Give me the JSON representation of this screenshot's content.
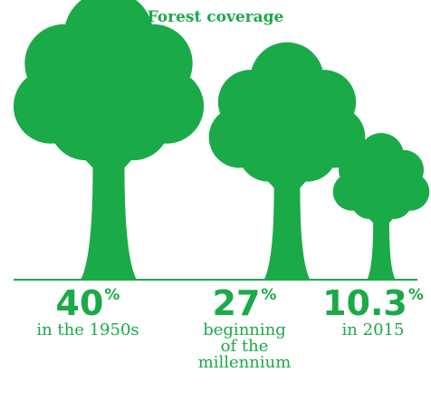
{
  "chart_data": {
    "type": "pictogram",
    "title": "Forest coverage",
    "unit_symbol": "%",
    "categories": [
      "in the 1950s",
      "beginning\nof the\nmillennium",
      "in 2015"
    ],
    "value_labels": [
      "40",
      "27",
      "10.3"
    ],
    "values": [
      40,
      27,
      10.3
    ]
  },
  "colors": {
    "tree": "#1aaa48",
    "text": "#1aaa48",
    "background": "#ffffff"
  },
  "icons": {
    "mark": "tree-icon"
  }
}
